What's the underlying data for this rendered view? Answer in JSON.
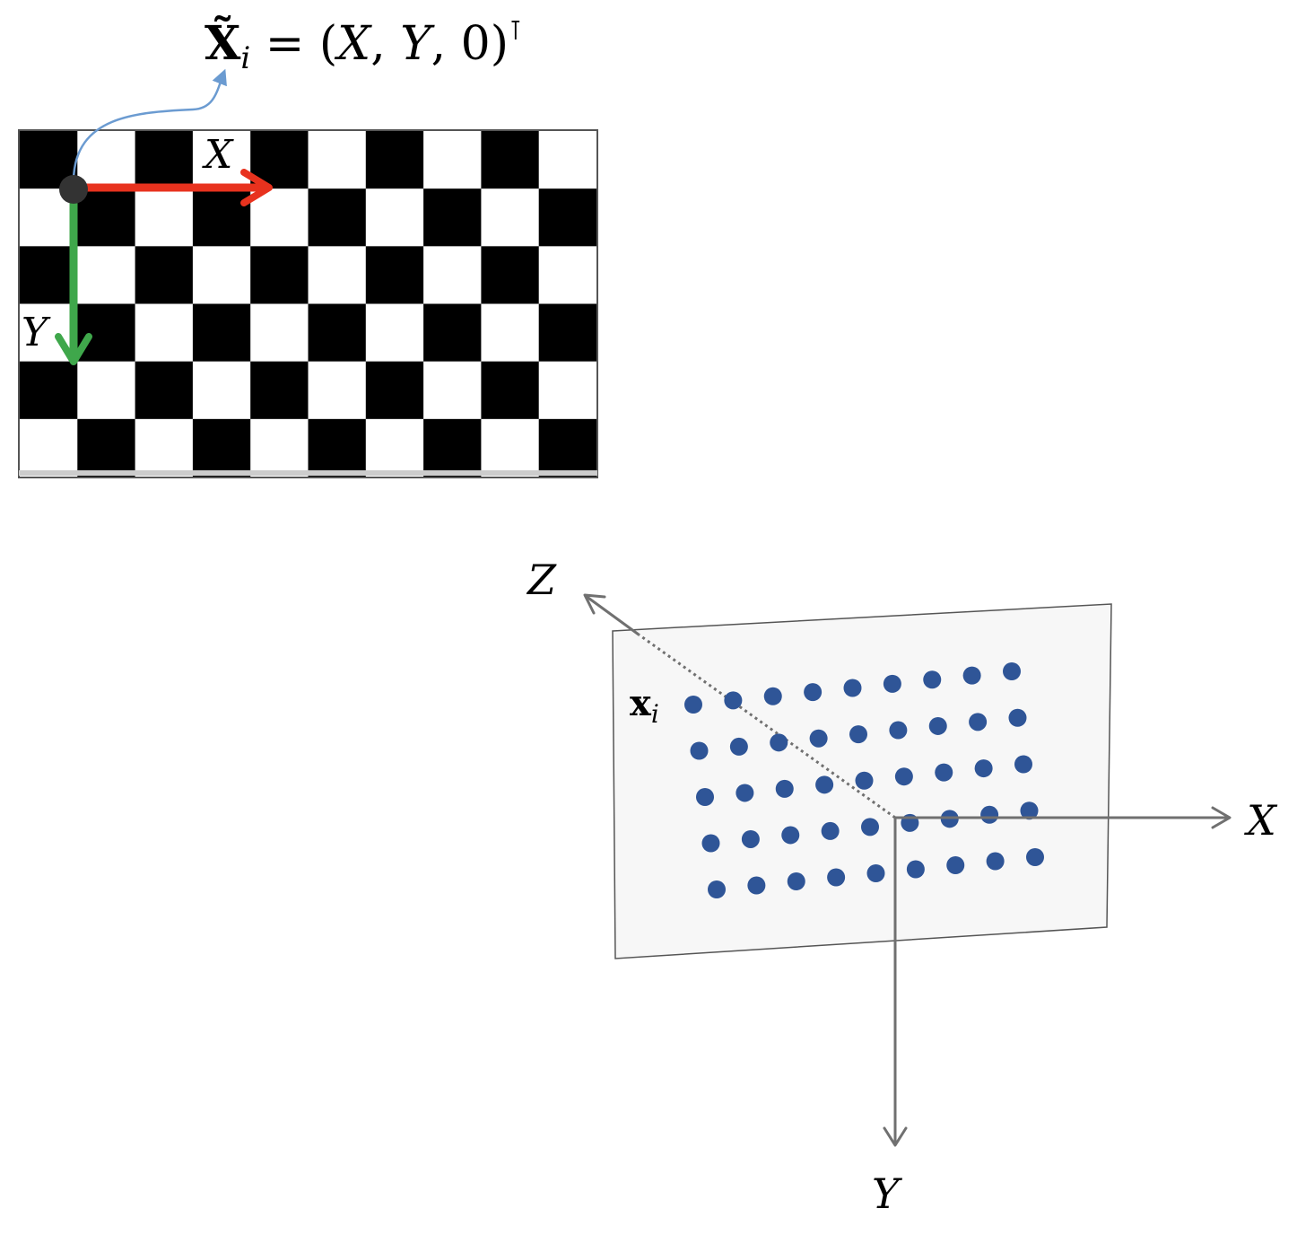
{
  "formula": {
    "lhs": "X̃",
    "subscript": "i",
    "rhs_open": " = (",
    "x": "X",
    "comma1": ", ",
    "y": "Y",
    "comma2": ", 0)",
    "transpose": "⊺"
  },
  "checkerboard": {
    "cols": 10,
    "rows": 6,
    "dark_color": "#000000",
    "light_color": "#ffffff",
    "axis_x_label": "X",
    "axis_y_label": "Y",
    "axis_x_color": "#e8321e",
    "axis_y_color": "#3fa74b",
    "origin_color": "#333333",
    "pointer_color": "#6b9bd1"
  },
  "camera_frame": {
    "axis_x_label": "X",
    "axis_y_label": "Y",
    "axis_z_label": "Z",
    "axis_color": "#707070",
    "image_plane_color": "#f7f7f7",
    "image_plane_border": "#555555",
    "point_label": "x",
    "point_label_subscript": "i",
    "dot_color": "#2f5597",
    "dot_rows": 5,
    "dot_cols": 9
  }
}
